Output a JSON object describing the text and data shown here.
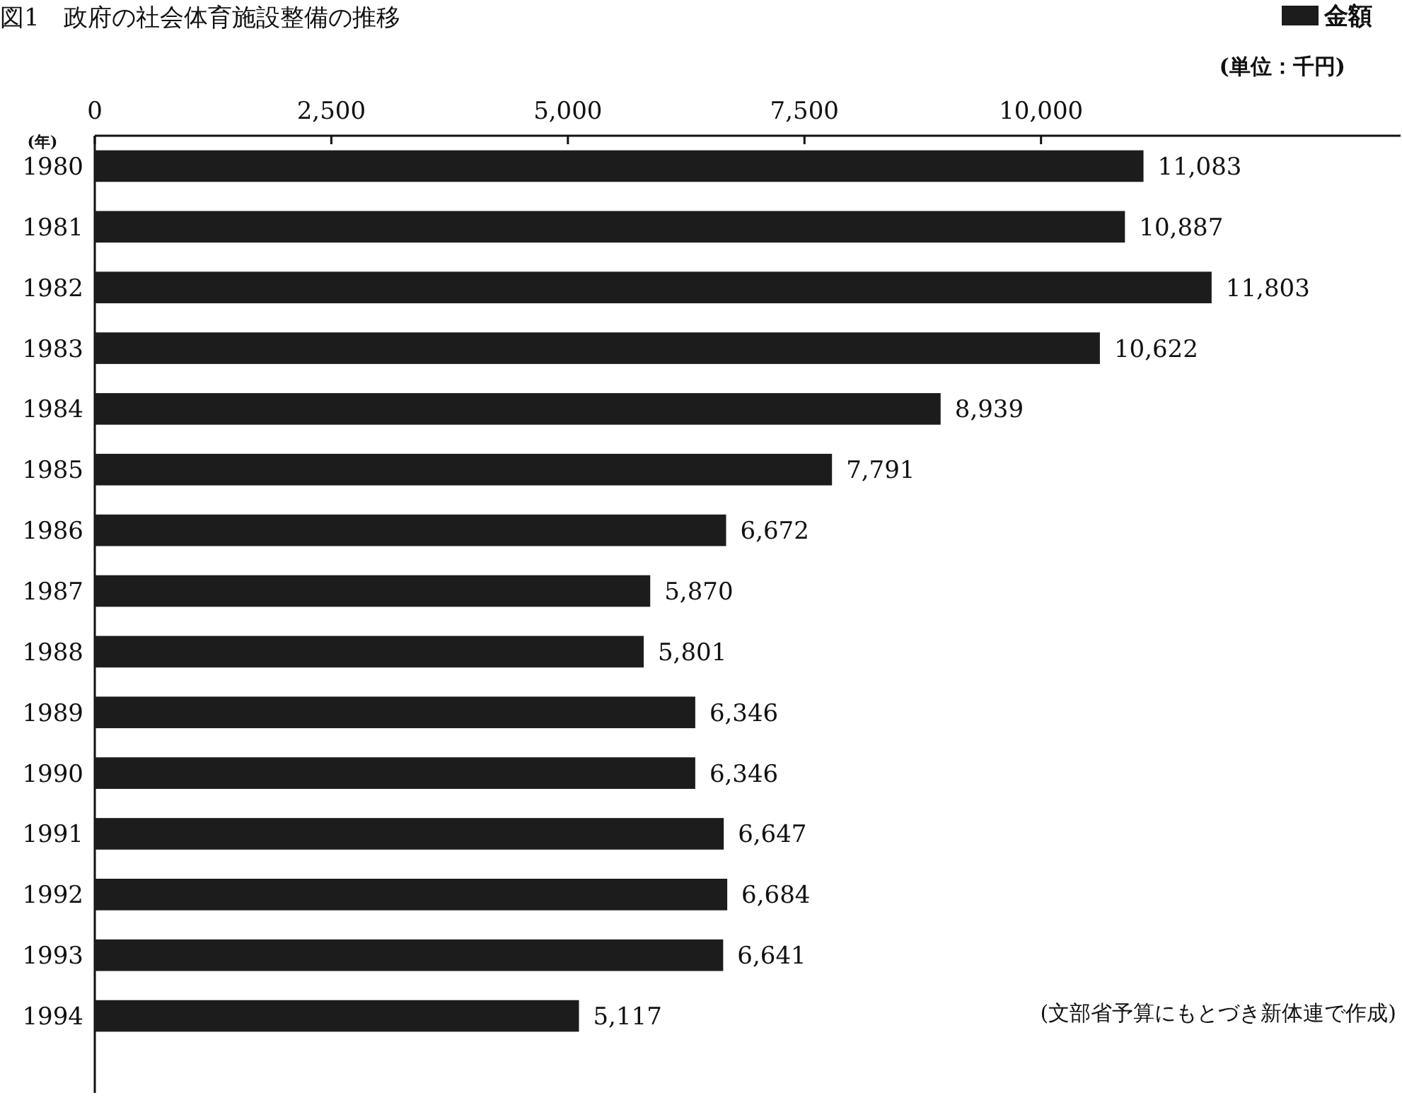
{
  "chart_data": {
    "type": "bar",
    "orientation": "horizontal",
    "title": "図1　政府の社会体育施設整備の推移",
    "ylabel": "(年)",
    "categories": [
      "1980",
      "1981",
      "1982",
      "1983",
      "1984",
      "1985",
      "1986",
      "1987",
      "1988",
      "1989",
      "1990",
      "1991",
      "1992",
      "1993",
      "1994"
    ],
    "series": [
      {
        "name": "金額",
        "color": "#1c1c1c",
        "values": [
          11083,
          10887,
          11803,
          10622,
          8939,
          7791,
          6672,
          5870,
          5801,
          6346,
          6346,
          6647,
          6684,
          6641,
          5117
        ],
        "value_labels": [
          "11,083",
          "10,887",
          "11,803",
          "10,622",
          "8,939",
          "7,791",
          "6,672",
          "5,870",
          "5,801",
          "6,346",
          "6,346",
          "6,647",
          "6,684",
          "6,641",
          "5,117"
        ]
      }
    ],
    "xlim": [
      0,
      13800
    ],
    "xticks": [
      0,
      {
        "value": 2500,
        "label": "2,500"
      },
      {
        "value": 5000,
        "label": "5,000"
      },
      {
        "value": 7500,
        "label": "7,500"
      },
      {
        "value": 10000,
        "label": "10,000"
      }
    ],
    "legend": "top right",
    "grid": false,
    "annotations": [
      "(単位：千円)",
      "(文部省予算にもとづき新体連で作成)"
    ]
  }
}
